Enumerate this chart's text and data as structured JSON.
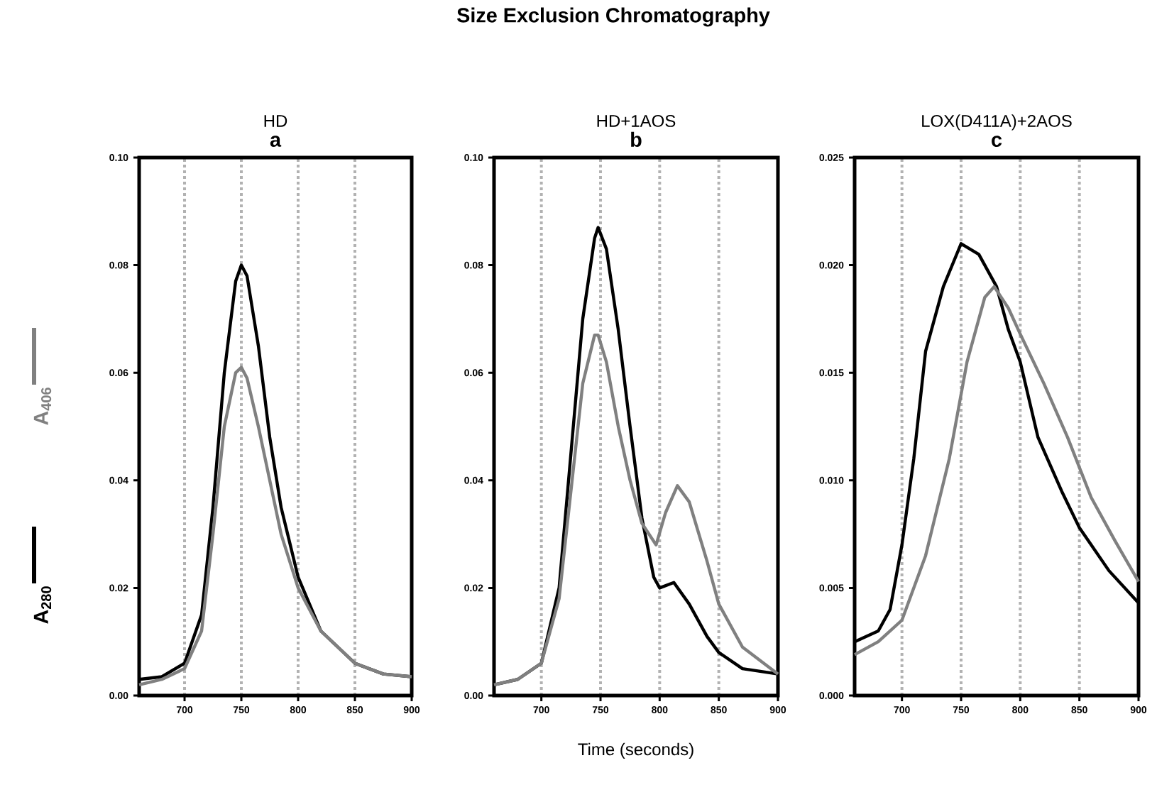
{
  "chart_data": [
    {
      "type": "line",
      "title": "HD",
      "subtitle": "a",
      "xlim": [
        660,
        900
      ],
      "xticks": [
        700,
        750,
        800,
        850,
        900
      ],
      "ylim": [
        0,
        0.1
      ],
      "yticks": [
        {
          "value": 0,
          "label": "0.00"
        },
        {
          "value": 0.02,
          "label": "0.02"
        },
        {
          "value": 0.04,
          "label": "0.04"
        },
        {
          "value": 0.06,
          "label": "0.06"
        },
        {
          "value": 0.08,
          "label": "0.08"
        },
        {
          "value": 0.1,
          "label": "0.10"
        }
      ],
      "grid": "x",
      "legend": "left",
      "series": [
        {
          "name": "A$_{280}$",
          "color": "#000000",
          "x": [
            660,
            680,
            700,
            715,
            725,
            735,
            745,
            750,
            755,
            765,
            775,
            785,
            800,
            820,
            850,
            875,
            900
          ],
          "values": [
            0.003,
            0.0035,
            0.006,
            0.015,
            0.035,
            0.06,
            0.077,
            0.08,
            0.078,
            0.065,
            0.048,
            0.035,
            0.022,
            0.012,
            0.006,
            0.004,
            0.0035
          ]
        },
        {
          "name": "A$_{406}$",
          "color": "#808080",
          "x": [
            660,
            680,
            700,
            715,
            725,
            735,
            745,
            750,
            755,
            765,
            775,
            785,
            800,
            820,
            850,
            875,
            900
          ],
          "values": [
            0.002,
            0.003,
            0.005,
            0.012,
            0.03,
            0.05,
            0.06,
            0.061,
            0.059,
            0.05,
            0.04,
            0.03,
            0.02,
            0.012,
            0.006,
            0.004,
            0.0035
          ]
        }
      ]
    },
    {
      "type": "line",
      "title": "HD+1AOS",
      "subtitle": "b",
      "xlabel": "Time (seconds)",
      "annotations": [
        "Size Exclusion Chromatography"
      ],
      "xlim": [
        660,
        900
      ],
      "xticks": [
        700,
        750,
        800,
        850,
        900
      ],
      "ylim": [
        0,
        0.1
      ],
      "yticks": [
        {
          "value": 0,
          "label": "0.00"
        },
        {
          "value": 0.02,
          "label": "0.02"
        },
        {
          "value": 0.04,
          "label": "0.04"
        },
        {
          "value": 0.06,
          "label": "0.06"
        },
        {
          "value": 0.08,
          "label": "0.08"
        },
        {
          "value": 0.1,
          "label": "0.10"
        }
      ],
      "grid": "x",
      "series": [
        {
          "color": "#000000",
          "x": [
            660,
            680,
            700,
            715,
            725,
            735,
            745,
            748,
            755,
            765,
            775,
            785,
            795,
            800,
            812,
            825,
            840,
            850,
            870,
            900
          ],
          "values": [
            0.002,
            0.003,
            0.006,
            0.02,
            0.045,
            0.07,
            0.085,
            0.087,
            0.083,
            0.068,
            0.05,
            0.033,
            0.022,
            0.02,
            0.021,
            0.017,
            0.011,
            0.008,
            0.005,
            0.004
          ]
        },
        {
          "color": "#808080",
          "x": [
            660,
            680,
            700,
            715,
            725,
            735,
            745,
            748,
            755,
            765,
            775,
            785,
            797,
            805,
            815,
            825,
            840,
            850,
            870,
            900
          ],
          "values": [
            0.002,
            0.003,
            0.006,
            0.018,
            0.038,
            0.058,
            0.067,
            0.067,
            0.062,
            0.05,
            0.04,
            0.032,
            0.028,
            0.034,
            0.039,
            0.036,
            0.025,
            0.017,
            0.009,
            0.004
          ]
        }
      ]
    },
    {
      "type": "line",
      "title": "LOX(D411A)+2AOS",
      "subtitle": "c",
      "xlim": [
        660,
        900
      ],
      "xticks": [
        700,
        750,
        800,
        850,
        900
      ],
      "ylim": [
        0,
        0.025
      ],
      "yticks": [
        {
          "value": 0,
          "label": "0.000"
        },
        {
          "value": 0.005,
          "label": "0.005"
        },
        {
          "value": 0.01,
          "label": "0.010"
        },
        {
          "value": 0.015,
          "label": "0.015"
        },
        {
          "value": 0.02,
          "label": "0.020"
        },
        {
          "value": 0.025,
          "label": "0.025"
        }
      ],
      "grid": "x",
      "series": [
        {
          "color": "#000000",
          "x": [
            660,
            680,
            690,
            700,
            710,
            720,
            735,
            750,
            765,
            780,
            790,
            800,
            815,
            835,
            850,
            875,
            900
          ],
          "values": [
            0.0025,
            0.003,
            0.004,
            0.007,
            0.011,
            0.016,
            0.019,
            0.021,
            0.0205,
            0.019,
            0.017,
            0.0155,
            0.012,
            0.0095,
            0.0078,
            0.0058,
            0.0043
          ]
        },
        {
          "color": "#808080",
          "x": [
            660,
            680,
            700,
            720,
            740,
            755,
            770,
            778,
            790,
            800,
            820,
            840,
            860,
            880,
            900
          ],
          "values": [
            0.0019,
            0.0025,
            0.0035,
            0.0065,
            0.011,
            0.0155,
            0.0185,
            0.019,
            0.018,
            0.0168,
            0.0145,
            0.012,
            0.0092,
            0.0072,
            0.0053
          ]
        }
      ]
    }
  ]
}
